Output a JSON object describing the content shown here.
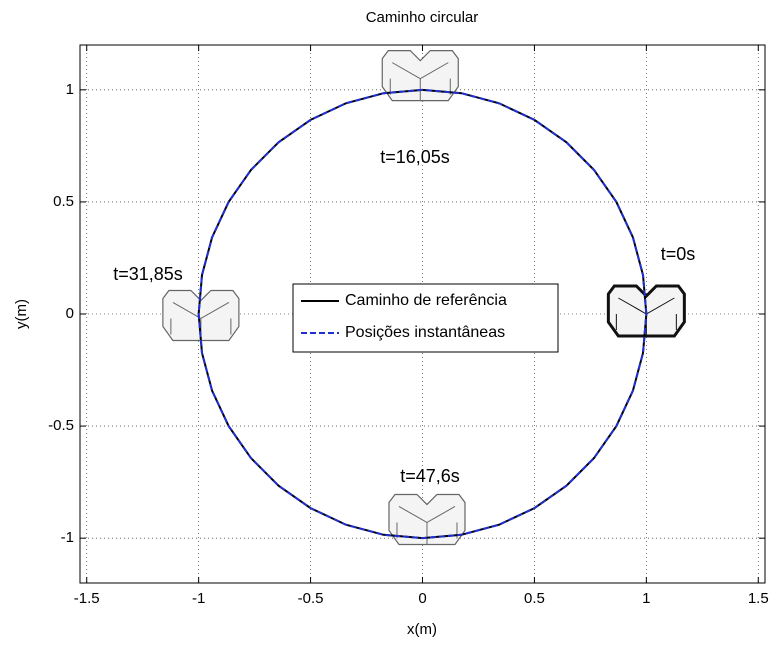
{
  "chart_data": {
    "type": "line",
    "title": "Caminho circular",
    "x_label": "x(m)",
    "y_label": "y(m)",
    "xlim": [
      -1.53,
      1.53
    ],
    "ylim": [
      -1.2,
      1.2
    ],
    "xticks": [
      -1.5,
      -1,
      -0.5,
      0,
      0.5,
      1,
      1.5
    ],
    "yticks": [
      -1,
      -0.5,
      0,
      0.5,
      1
    ],
    "grid": true,
    "legend": "center",
    "series": [
      {
        "name": "Caminho de referência",
        "color": "#000000",
        "line_style": "solid",
        "x": [
          1,
          0.985,
          0.94,
          0.866,
          0.766,
          0.643,
          0.5,
          0.342,
          0.174,
          0,
          -0.174,
          -0.342,
          -0.5,
          -0.643,
          -0.766,
          -0.866,
          -0.94,
          -0.985,
          -1,
          -0.985,
          -0.94,
          -0.866,
          -0.766,
          -0.643,
          -0.5,
          -0.342,
          -0.174,
          0,
          0.174,
          0.342,
          0.5,
          0.643,
          0.766,
          0.866,
          0.94,
          0.985,
          1
        ],
        "values": [
          0,
          0.174,
          0.342,
          0.5,
          0.643,
          0.766,
          0.866,
          0.94,
          0.985,
          1,
          0.985,
          0.94,
          0.866,
          0.766,
          0.643,
          0.5,
          0.342,
          0.174,
          0,
          -0.174,
          -0.342,
          -0.5,
          -0.643,
          -0.766,
          -0.866,
          -0.94,
          -0.985,
          -1,
          -0.985,
          -0.94,
          -0.866,
          -0.766,
          -0.643,
          -0.5,
          -0.342,
          -0.174,
          0
        ]
      },
      {
        "name": "Posições instantâneas",
        "color": "#1f2fd0",
        "line_style": "dashed",
        "x": [
          1,
          0.985,
          0.94,
          0.866,
          0.766,
          0.643,
          0.5,
          0.342,
          0.174,
          0,
          -0.174,
          -0.342,
          -0.5,
          -0.643,
          -0.766,
          -0.866,
          -0.94,
          -0.985,
          -1,
          -0.985,
          -0.94,
          -0.866,
          -0.766,
          -0.643,
          -0.5,
          -0.342,
          -0.174,
          0,
          0.174,
          0.342,
          0.5,
          0.643,
          0.766,
          0.866,
          0.94,
          0.985,
          1
        ],
        "values": [
          0,
          0.174,
          0.342,
          0.5,
          0.643,
          0.766,
          0.866,
          0.94,
          0.985,
          1,
          0.985,
          0.94,
          0.866,
          0.766,
          0.643,
          0.5,
          0.342,
          0.174,
          0,
          -0.174,
          -0.342,
          -0.5,
          -0.643,
          -0.766,
          -0.866,
          -0.94,
          -0.985,
          -1,
          -0.985,
          -0.94,
          -0.866,
          -0.766,
          -0.643,
          -0.5,
          -0.342,
          -0.174,
          0
        ]
      }
    ],
    "annotations": [
      "t=0s",
      "t=16,05s",
      "t=31,85s",
      "t=47,6s"
    ]
  }
}
